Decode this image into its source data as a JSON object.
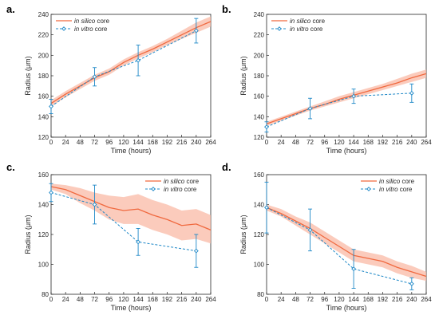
{
  "colors": {
    "in_silico": "#F0693F",
    "in_silico_band": "#F9B9A6",
    "in_vitro": "#1E88C7",
    "axis": "#262626"
  },
  "legend_placement": "top-left",
  "chart_data": [
    {
      "panel": "a.",
      "type": "line",
      "xlabel": "Time (hours)",
      "ylabel": "Radius (μm)",
      "xlim": [
        0,
        264
      ],
      "ylim": [
        120,
        240
      ],
      "xticks": [
        0,
        24,
        48,
        72,
        96,
        120,
        144,
        168,
        192,
        216,
        240,
        264
      ],
      "yticks": [
        120,
        140,
        160,
        180,
        200,
        220,
        240
      ],
      "legend_position": "top-left",
      "legend": [
        {
          "italic": "in silico",
          "rest": " core"
        },
        {
          "italic": "in vitro",
          "rest": " core"
        }
      ],
      "series": [
        {
          "name": "in silico core",
          "style": "line-band",
          "x": [
            0,
            24,
            48,
            72,
            96,
            120,
            144,
            168,
            192,
            216,
            240,
            264
          ],
          "y": [
            153,
            162,
            170,
            178,
            184,
            193,
            200,
            206,
            213,
            220,
            227,
            233
          ],
          "lower": [
            150,
            159,
            167,
            175,
            181,
            190,
            197,
            203,
            210,
            216,
            222,
            228
          ],
          "upper": [
            156,
            165,
            173,
            181,
            187,
            196,
            203,
            209,
            216,
            224,
            232,
            238
          ]
        },
        {
          "name": "in vitro core",
          "style": "dashed-errorbar",
          "x": [
            0,
            72,
            144,
            240
          ],
          "y": [
            150,
            179,
            195,
            224
          ],
          "err": [
            7,
            9,
            15,
            12
          ]
        }
      ]
    },
    {
      "panel": "b.",
      "type": "line",
      "xlabel": "Time (hours)",
      "ylabel": "Radius (μm)",
      "xlim": [
        0,
        264
      ],
      "ylim": [
        120,
        240
      ],
      "xticks": [
        0,
        24,
        48,
        72,
        96,
        120,
        144,
        168,
        192,
        216,
        240,
        264
      ],
      "yticks": [
        120,
        140,
        160,
        180,
        200,
        220,
        240
      ],
      "legend_position": "top-left",
      "legend": [
        {
          "italic": "in silico",
          "rest": " core"
        },
        {
          "italic": "in vitro",
          "rest": " core"
        }
      ],
      "series": [
        {
          "name": "in silico core",
          "style": "line-band",
          "x": [
            0,
            24,
            48,
            72,
            96,
            120,
            144,
            168,
            192,
            216,
            240,
            264
          ],
          "y": [
            133,
            138,
            143,
            148,
            152,
            157,
            161,
            165,
            169,
            173,
            178,
            182
          ],
          "lower": [
            131,
            136,
            141,
            146,
            150,
            154,
            158,
            162,
            166,
            170,
            174,
            178
          ],
          "upper": [
            135,
            140,
            145,
            150,
            155,
            160,
            164,
            168,
            172,
            177,
            182,
            186
          ]
        },
        {
          "name": "in vitro core",
          "style": "dashed-errorbar",
          "x": [
            0,
            72,
            144,
            240
          ],
          "y": [
            130,
            148,
            160,
            163
          ],
          "err": [
            5,
            10,
            7,
            9
          ]
        }
      ]
    },
    {
      "panel": "c.",
      "type": "line",
      "xlabel": "Time (hours)",
      "ylabel": "Radius (μm)",
      "xlim": [
        0,
        264
      ],
      "ylim": [
        80,
        160
      ],
      "xticks": [
        0,
        24,
        48,
        72,
        96,
        120,
        144,
        168,
        192,
        216,
        240,
        264
      ],
      "yticks": [
        80,
        100,
        120,
        140,
        160
      ],
      "legend_position": "top-right",
      "legend": [
        {
          "italic": "in silico",
          "rest": " core"
        },
        {
          "italic": "in vitro",
          "rest": " core"
        }
      ],
      "series": [
        {
          "name": "in silico core",
          "style": "line-band",
          "x": [
            0,
            24,
            48,
            72,
            96,
            120,
            144,
            168,
            192,
            216,
            240,
            264
          ],
          "y": [
            152,
            150,
            146,
            142,
            138,
            136,
            137,
            133,
            130,
            126,
            127,
            123
          ],
          "lower": [
            150,
            147,
            141,
            136,
            130,
            127,
            127,
            123,
            120,
            116,
            117,
            114
          ],
          "upper": [
            154,
            153,
            151,
            148,
            146,
            145,
            147,
            143,
            140,
            136,
            137,
            133
          ]
        },
        {
          "name": "in vitro core",
          "style": "dashed-errorbar",
          "x": [
            0,
            72,
            144,
            240
          ],
          "y": [
            148,
            140,
            115,
            109
          ],
          "err": [
            6,
            13,
            9,
            11
          ]
        }
      ]
    },
    {
      "panel": "d.",
      "type": "line",
      "xlabel": "Time (hours)",
      "ylabel": "Radius (μm)",
      "xlim": [
        0,
        264
      ],
      "ylim": [
        80,
        160
      ],
      "xticks": [
        0,
        24,
        48,
        72,
        96,
        120,
        144,
        168,
        192,
        216,
        240,
        264
      ],
      "yticks": [
        80,
        100,
        120,
        140,
        160
      ],
      "legend_position": "top-right",
      "legend": [
        {
          "italic": "in silico",
          "rest": " core"
        },
        {
          "italic": "in vitro",
          "rest": " core"
        }
      ],
      "series": [
        {
          "name": "in silico core",
          "style": "line-band",
          "x": [
            0,
            24,
            48,
            72,
            96,
            120,
            144,
            168,
            192,
            216,
            240,
            264
          ],
          "y": [
            138,
            134,
            129,
            124,
            118,
            112,
            106,
            104,
            102,
            98,
            95,
            92
          ],
          "lower": [
            136,
            132,
            126,
            120,
            114,
            108,
            102,
            100,
            98,
            94,
            91,
            89
          ],
          "upper": [
            140,
            137,
            132,
            128,
            122,
            116,
            110,
            108,
            106,
            102,
            99,
            95
          ]
        },
        {
          "name": "in vitro core",
          "style": "dashed-errorbar",
          "x": [
            0,
            72,
            144,
            240
          ],
          "y": [
            138,
            123,
            97,
            87
          ],
          "err": [
            17,
            14,
            13,
            4
          ]
        }
      ]
    }
  ]
}
